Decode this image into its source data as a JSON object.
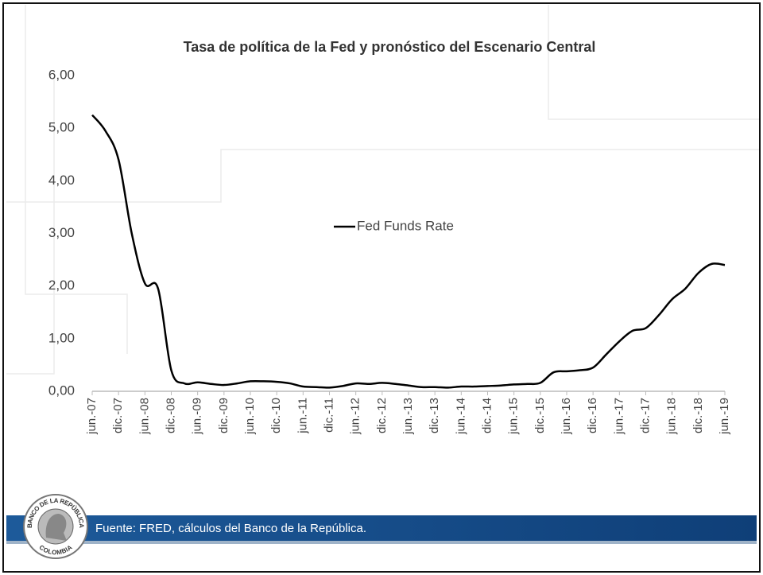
{
  "chart_data": {
    "type": "line",
    "title": "Tasa de política de la Fed y pronóstico del Escenario Central",
    "categories": [
      "jun.-07",
      null,
      "dic.-07",
      null,
      "jun.-08",
      null,
      "dic.-08",
      null,
      "jun.-09",
      null,
      "dic.-09",
      null,
      "jun.-10",
      null,
      "dic.-10",
      null,
      "jun.-11",
      null,
      "dic.-11",
      null,
      "jun.-12",
      null,
      "dic.-12",
      null,
      "jun.-13",
      null,
      "dic.-13",
      null,
      "jun.-14",
      null,
      "dic.-14",
      null,
      "jun.-15",
      null,
      "dic.-15",
      null,
      "jun.-16",
      null,
      "dic.-16",
      null,
      "jun.-17",
      null,
      "dic.-17",
      null,
      "jun.-18",
      null,
      "dic.-18",
      null,
      "jun.-19"
    ],
    "series": [
      {
        "name": "Fed Funds Rate",
        "color": "#000000",
        "values": [
          5.25,
          4.95,
          4.4,
          3.0,
          2.05,
          1.95,
          0.4,
          0.15,
          0.17,
          0.14,
          0.12,
          0.15,
          0.19,
          0.19,
          0.18,
          0.15,
          0.09,
          0.08,
          0.07,
          0.1,
          0.15,
          0.14,
          0.16,
          0.14,
          0.11,
          0.08,
          0.08,
          0.07,
          0.09,
          0.09,
          0.1,
          0.11,
          0.13,
          0.14,
          0.16,
          0.36,
          0.38,
          0.4,
          0.45,
          0.7,
          0.95,
          1.15,
          1.2,
          1.45,
          1.75,
          1.95,
          2.25,
          2.42,
          2.4
        ]
      }
    ],
    "ylim": [
      0,
      6
    ],
    "yticks": [
      {
        "value": 0,
        "label": "0,00"
      },
      {
        "value": 1,
        "label": "1,00"
      },
      {
        "value": 2,
        "label": "2,00"
      },
      {
        "value": 3,
        "label": "3,00"
      },
      {
        "value": 4,
        "label": "4,00"
      },
      {
        "value": 5,
        "label": "5,00"
      },
      {
        "value": 6,
        "label": "6,00"
      }
    ],
    "grid": false,
    "legend": "center"
  },
  "footer": {
    "source": "Fuente: FRED, cálculos del Banco de la República."
  },
  "logo": {
    "top": "BANCO DE LA REPÚBLICA",
    "bottom": "COLOMBIA"
  }
}
